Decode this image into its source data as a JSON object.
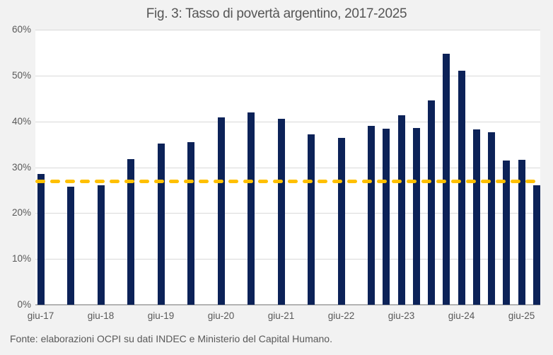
{
  "chart_data": {
    "type": "bar",
    "title": "Fig. 3: Tasso di povertà argentino, 2017-2025",
    "xlabel": "",
    "ylabel": "",
    "ylim": [
      0,
      60
    ],
    "grid": true,
    "legend": "none",
    "y_tick_labels": [
      "0%",
      "10%",
      "20%",
      "30%",
      "40%",
      "50%",
      "60%"
    ],
    "x_tick_labels": [
      "giu-17",
      "giu-18",
      "giu-19",
      "giu-20",
      "giu-21",
      "giu-22",
      "giu-23",
      "giu-24",
      "giu-25"
    ],
    "bar_color": "#0c2258",
    "background_color": "#f2f2f2",
    "plot_background_color": "#ffffff",
    "series": [
      {
        "name": "Tasso di povertà",
        "points": [
          {
            "label": "giu-17",
            "t": 0,
            "value": 28.6
          },
          {
            "label": "dic-17",
            "t": 2,
            "value": 25.7
          },
          {
            "label": "giu-18",
            "t": 4,
            "value": 26.1
          },
          {
            "label": "dic-18",
            "t": 6,
            "value": 31.8
          },
          {
            "label": "giu-19",
            "t": 8,
            "value": 35.2
          },
          {
            "label": "dic-19",
            "t": 10,
            "value": 35.5
          },
          {
            "label": "giu-20",
            "t": 12,
            "value": 40.9
          },
          {
            "label": "dic-20",
            "t": 14,
            "value": 42.0
          },
          {
            "label": "giu-21",
            "t": 16,
            "value": 40.5
          },
          {
            "label": "dic-21",
            "t": 18,
            "value": 37.2
          },
          {
            "label": "giu-22",
            "t": 20,
            "value": 36.4
          },
          {
            "label": "dic-22",
            "t": 22,
            "value": 39.1
          },
          {
            "label": "mar-23",
            "t": 23,
            "value": 38.4
          },
          {
            "label": "giu-23",
            "t": 24,
            "value": 41.4
          },
          {
            "label": "set-23",
            "t": 25,
            "value": 38.5
          },
          {
            "label": "dic-23",
            "t": 26,
            "value": 44.6
          },
          {
            "label": "mar-24",
            "t": 27,
            "value": 54.7
          },
          {
            "label": "giu-24",
            "t": 28,
            "value": 51.0
          },
          {
            "label": "set-24",
            "t": 29,
            "value": 38.2
          },
          {
            "label": "dic-24",
            "t": 30,
            "value": 37.7
          },
          {
            "label": "mar-25",
            "t": 31,
            "value": 31.4
          },
          {
            "label": "giu-25",
            "t": 32,
            "value": 31.6
          },
          {
            "label": "set-25",
            "t": 33,
            "value": 26.0
          }
        ]
      }
    ],
    "reference_line": {
      "value": 26.9,
      "style": "dashed",
      "color": "#ffc000"
    }
  },
  "source_note": "Fonte: elaborazioni OCPI su dati INDEC e Ministerio del Capital Humano."
}
